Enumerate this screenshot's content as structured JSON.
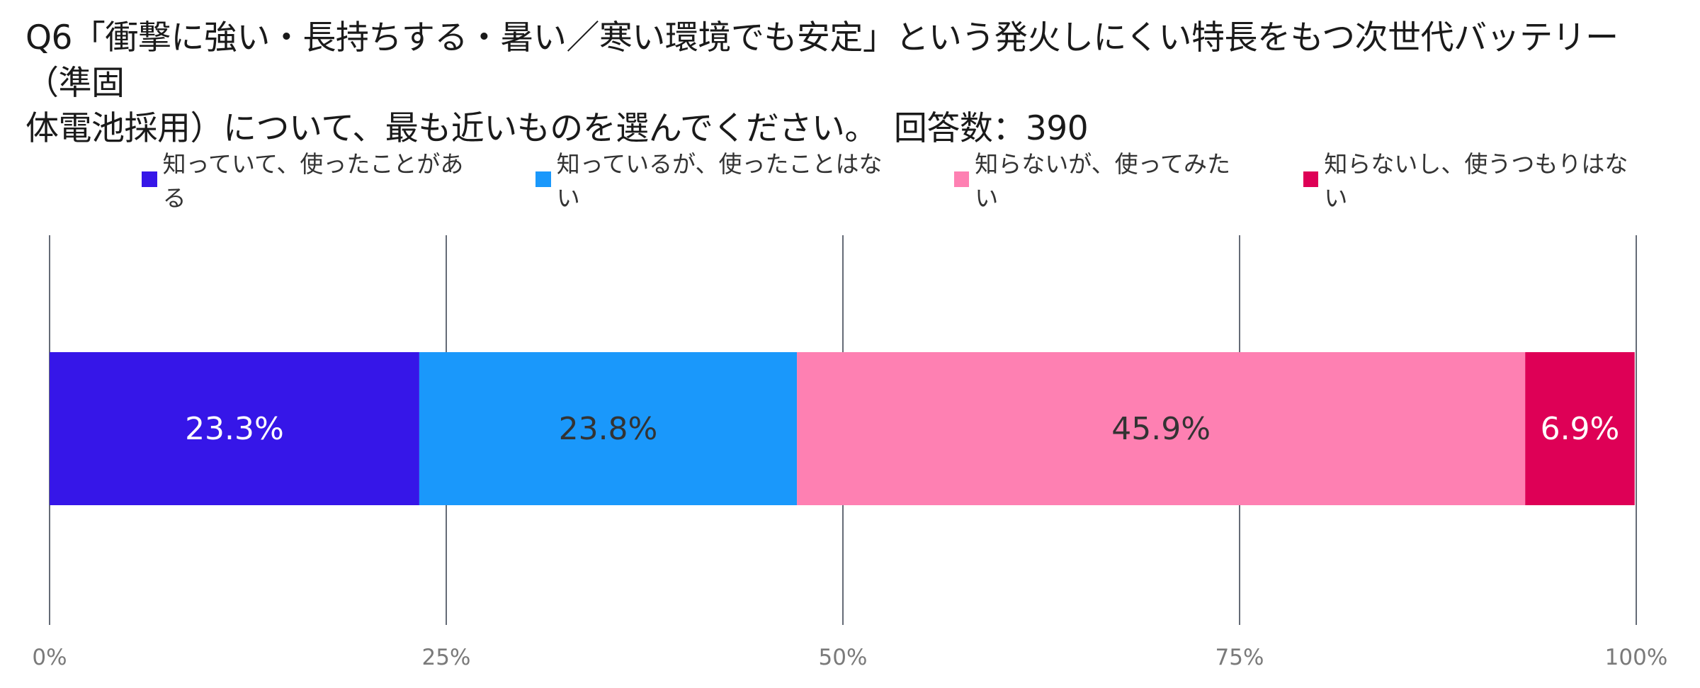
{
  "title_line1": "Q6「衝撃に強い・長持ちする・暑い／寒い環境でも安定」という発火しにくい特長をもつ次世代バッテリー（準固",
  "title_line2": "体電池採用）について、最も近いものを選んでください。　回答数：390",
  "chart_data": {
    "type": "bar",
    "orientation": "horizontal-stacked-100",
    "xlim": [
      0,
      100
    ],
    "xticks": [
      "0%",
      "25%",
      "50%",
      "75%",
      "100%"
    ],
    "grid": true,
    "legend_position": "top",
    "series": [
      {
        "name": "知っていて、使ったことがある",
        "value": 23.3,
        "label": "23.3%",
        "color": "#3616e8",
        "label_color": "#ffffff"
      },
      {
        "name": "知っているが、使ったことはない",
        "value": 23.8,
        "label": "23.8%",
        "color": "#1a98fb",
        "label_color": "#333333"
      },
      {
        "name": "知らないが、使ってみたい",
        "value": 45.9,
        "label": "45.9%",
        "color": "#fe80b2",
        "label_color": "#333333"
      },
      {
        "name": "知らないし、使うつもりはない",
        "value": 6.9,
        "label": "6.9%",
        "color": "#de0056",
        "label_color": "#ffffff"
      }
    ]
  }
}
